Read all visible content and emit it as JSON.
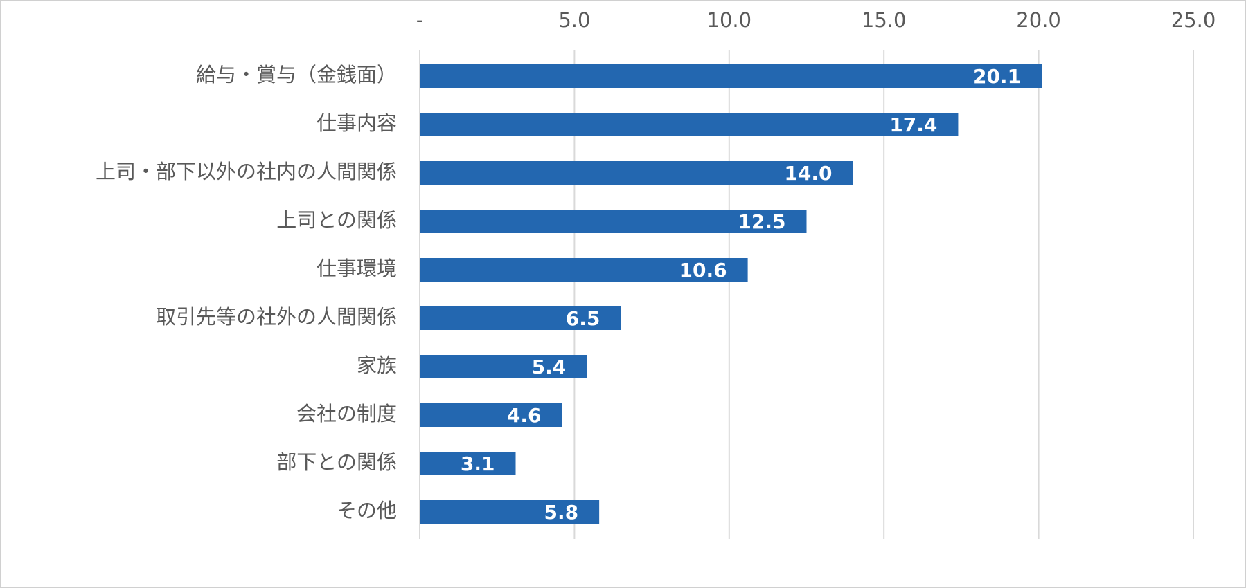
{
  "chart_data": {
    "type": "bar",
    "orientation": "horizontal",
    "categories": [
      "給与・賞与（金銭面）",
      "仕事内容",
      "上司・部下以外の社内の人間関係",
      "上司との関係",
      "仕事環境",
      "取引先等の社外の人間関係",
      "家族",
      "会社の制度",
      "部下との関係",
      "その他"
    ],
    "values": [
      20.1,
      17.4,
      14.0,
      12.5,
      10.6,
      6.5,
      5.4,
      4.6,
      3.1,
      5.8
    ],
    "value_labels": [
      "20.1",
      "17.4",
      "14.0",
      "12.5",
      "10.6",
      "6.5",
      "5.4",
      "4.6",
      "3.1",
      "5.8"
    ],
    "xlim": [
      0,
      25
    ],
    "x_ticks": [
      0,
      5,
      10,
      15,
      20,
      25
    ],
    "x_tick_labels": [
      "-",
      "5.0",
      "10.0",
      "15.0",
      "20.0",
      "25.0"
    ],
    "x_axis_position": "top",
    "grid": true,
    "legend": "none",
    "bar_color": "#2367B0",
    "grid_color": "#d9d9d9",
    "text_color": "#595959",
    "value_label_color": "#ffffff"
  }
}
